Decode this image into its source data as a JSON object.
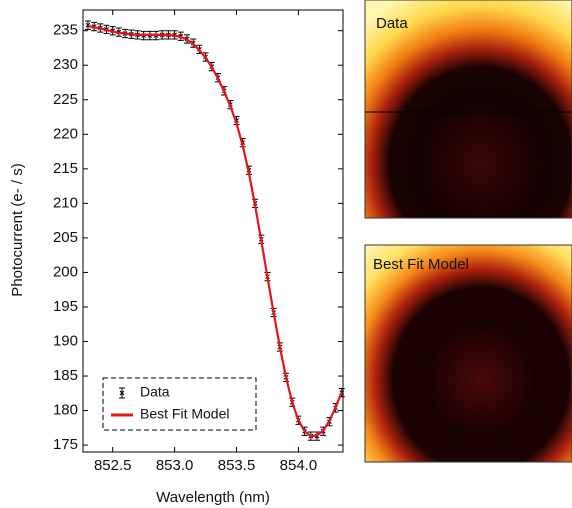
{
  "chart_data": {
    "type": "line",
    "xlabel": "Wavelength (nm)",
    "ylabel": "Photocurrent (e- / s)",
    "xlim": [
      852.26,
      854.36
    ],
    "ylim": [
      174,
      238
    ],
    "xticks": [
      852.5,
      {
        "value": 853,
        "label": "853.0"
      },
      853.5,
      {
        "value": 854,
        "label": "854.0"
      }
    ],
    "yticks": [
      175,
      180,
      185,
      190,
      195,
      200,
      205,
      210,
      215,
      220,
      225,
      230,
      235
    ],
    "legend": "lower left",
    "x": [
      852.3,
      852.35,
      852.4,
      852.45,
      852.5,
      852.55,
      852.6,
      852.65,
      852.7,
      852.75,
      852.8,
      852.85,
      852.9,
      852.95,
      853.0,
      853.05,
      853.1,
      853.15,
      853.2,
      853.25,
      853.3,
      853.35,
      853.4,
      853.45,
      853.5,
      853.55,
      853.6,
      853.65,
      853.7,
      853.75,
      853.8,
      853.85,
      853.9,
      853.95,
      854.0,
      854.05,
      854.1,
      854.15,
      854.2,
      854.25,
      854.3,
      854.35
    ],
    "series": [
      {
        "name": "Data",
        "color": "#000000",
        "style": "errorbar",
        "error": 0.6,
        "values": [
          235.8,
          235.6,
          235.4,
          235.2,
          235.0,
          234.8,
          234.6,
          234.5,
          234.4,
          234.3,
          234.3,
          234.3,
          234.4,
          234.4,
          234.4,
          234.2,
          233.8,
          233.2,
          232.3,
          231.2,
          229.8,
          228.2,
          226.3,
          224.3,
          222.0,
          218.8,
          214.8,
          210.0,
          204.8,
          199.4,
          194.2,
          189.2,
          184.8,
          181.2,
          178.6,
          177.0,
          176.3,
          176.3,
          177.0,
          178.4,
          180.4,
          182.6
        ]
      },
      {
        "name": "Best Fit Model",
        "color": "#e8141b",
        "style": "line",
        "values": [
          235.7,
          235.5,
          235.3,
          235.1,
          234.9,
          234.7,
          234.6,
          234.5,
          234.4,
          234.4,
          234.4,
          234.4,
          234.4,
          234.4,
          234.3,
          234.1,
          233.7,
          233.1,
          232.2,
          231.1,
          229.7,
          228.1,
          226.2,
          224.1,
          221.6,
          218.4,
          214.4,
          209.7,
          204.6,
          199.3,
          194.1,
          189.2,
          184.8,
          181.2,
          178.6,
          177.0,
          176.3,
          176.4,
          177.1,
          178.5,
          180.5,
          182.7
        ]
      }
    ]
  },
  "images": [
    {
      "label": "Data"
    },
    {
      "label": "Best Fit Model"
    }
  ]
}
